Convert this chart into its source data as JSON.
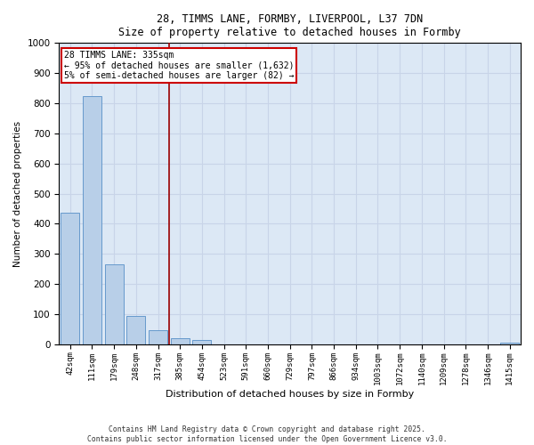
{
  "title_line1": "28, TIMMS LANE, FORMBY, LIVERPOOL, L37 7DN",
  "title_line2": "Size of property relative to detached houses in Formby",
  "xlabel": "Distribution of detached houses by size in Formby",
  "ylabel": "Number of detached properties",
  "categories": [
    "42sqm",
    "111sqm",
    "179sqm",
    "248sqm",
    "317sqm",
    "385sqm",
    "454sqm",
    "523sqm",
    "591sqm",
    "660sqm",
    "729sqm",
    "797sqm",
    "866sqm",
    "934sqm",
    "1003sqm",
    "1072sqm",
    "1140sqm",
    "1209sqm",
    "1278sqm",
    "1346sqm",
    "1415sqm"
  ],
  "values": [
    435,
    825,
    265,
    95,
    45,
    20,
    15,
    0,
    0,
    0,
    0,
    0,
    0,
    0,
    0,
    0,
    0,
    0,
    0,
    0,
    5
  ],
  "bar_color": "#b8cfe8",
  "bar_edge_color": "#6699cc",
  "ylim": [
    0,
    1000
  ],
  "yticks": [
    0,
    100,
    200,
    300,
    400,
    500,
    600,
    700,
    800,
    900,
    1000
  ],
  "vline_x": 4.5,
  "annotation_title": "28 TIMMS LANE: 335sqm",
  "annotation_line2": "← 95% of detached houses are smaller (1,632)",
  "annotation_line3": "5% of semi-detached houses are larger (82) →",
  "annotation_color": "#cc0000",
  "vline_color": "#990000",
  "grid_color": "#c8d4e8",
  "background_color": "#dce8f5",
  "footer_line1": "Contains HM Land Registry data © Crown copyright and database right 2025.",
  "footer_line2": "Contains public sector information licensed under the Open Government Licence v3.0."
}
